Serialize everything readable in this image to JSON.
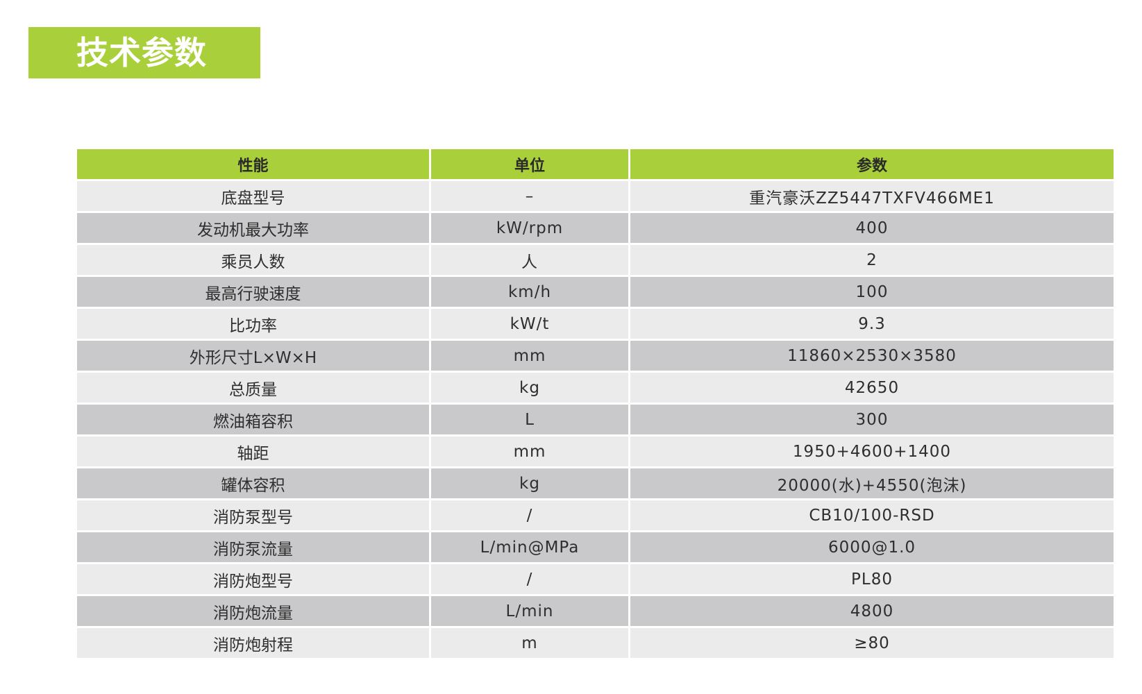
{
  "title": "技术参数",
  "colors": {
    "accent": "#a9cf3b",
    "row_light": "#ebebec",
    "row_dark": "#c9c9cb"
  },
  "table": {
    "headers": [
      "性能",
      "单位",
      "参数"
    ],
    "rows": [
      [
        "底盘型号",
        "–",
        "重汽豪沃ZZ5447TXFV466ME1"
      ],
      [
        "发动机最大功率",
        "kW/rpm",
        "400"
      ],
      [
        "乘员人数",
        "人",
        "2"
      ],
      [
        "最高行驶速度",
        "km/h",
        "100"
      ],
      [
        "比功率",
        "kW/t",
        "9.3"
      ],
      [
        "外形尺寸L×W×H",
        "mm",
        "11860×2530×3580"
      ],
      [
        "总质量",
        "kg",
        "42650"
      ],
      [
        "燃油箱容积",
        "L",
        "300"
      ],
      [
        "轴距",
        "mm",
        "1950+4600+1400"
      ],
      [
        "罐体容积",
        "kg",
        "20000(水)+4550(泡沫)"
      ],
      [
        "消防泵型号",
        "/",
        "CB10/100-RSD"
      ],
      [
        "消防泵流量",
        "L/min@MPa",
        "6000@1.0"
      ],
      [
        "消防炮型号",
        "/",
        "PL80"
      ],
      [
        "消防炮流量",
        "L/min",
        "4800"
      ],
      [
        "消防炮射程",
        "m",
        "≥80"
      ]
    ]
  }
}
